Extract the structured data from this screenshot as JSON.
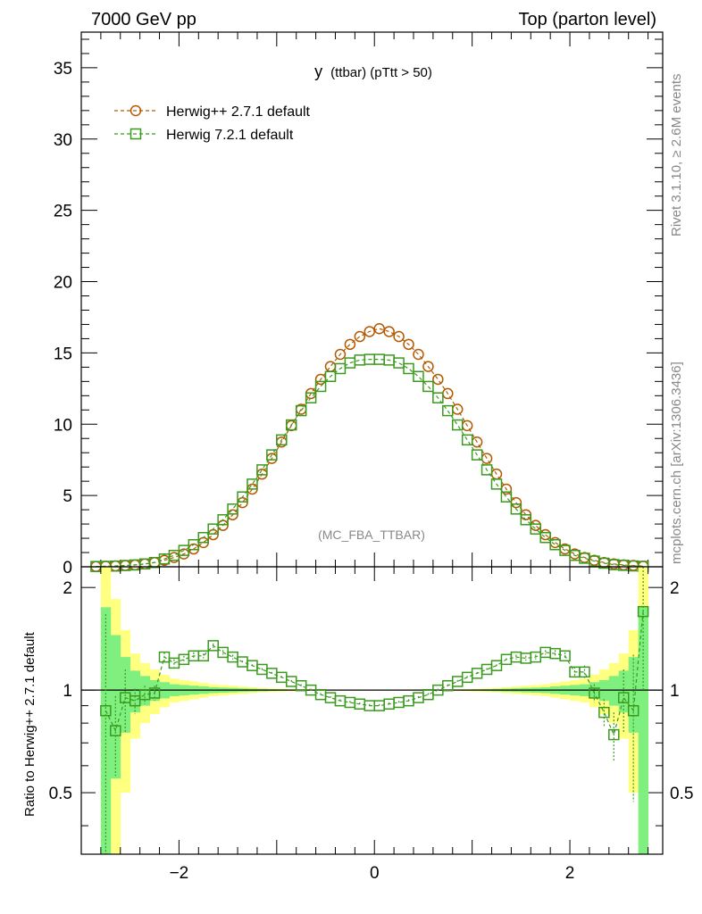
{
  "header": {
    "left": "7000 GeV pp",
    "right": "Top (parton level)"
  },
  "side": {
    "rivet": "Rivet 3.1.10, ≥ 2.6M events",
    "mcplots": "mcplots.cern.ch [arXiv:1306.3436]"
  },
  "plot_title_main": "y",
  "plot_title_sub": "(ttbar)  (pTtt > 50)",
  "analysis_label": "(MC_FBA_TTBAR)",
  "ratio_ylabel": "Ratio to Herwig++ 2.7.1 default",
  "colors": {
    "herwigpp": "#b35a00",
    "herwig7": "#3a9a1e",
    "band_yellow": "#ffff80",
    "band_green": "#7ff07f"
  },
  "chart_data": [
    {
      "type": "scatter",
      "panel": "main",
      "title": "y (ttbar) (pTtt > 50)",
      "xlim": [
        -3,
        2.95
      ],
      "ylim": [
        0,
        37.5
      ],
      "yticks": [
        0,
        5,
        10,
        15,
        20,
        25,
        30,
        35
      ],
      "legend_position": "top-left",
      "x": [
        -2.85,
        -2.75,
        -2.65,
        -2.55,
        -2.45,
        -2.35,
        -2.25,
        -2.15,
        -2.05,
        -1.95,
        -1.85,
        -1.75,
        -1.65,
        -1.55,
        -1.45,
        -1.35,
        -1.25,
        -1.15,
        -1.05,
        -0.95,
        -0.85,
        -0.75,
        -0.65,
        -0.55,
        -0.45,
        -0.35,
        -0.25,
        -0.15,
        -0.05,
        0.05,
        0.15,
        0.25,
        0.35,
        0.45,
        0.55,
        0.65,
        0.75,
        0.85,
        0.95,
        1.05,
        1.15,
        1.25,
        1.35,
        1.45,
        1.55,
        1.65,
        1.75,
        1.85,
        1.95,
        2.05,
        2.15,
        2.25,
        2.35,
        2.45,
        2.55,
        2.65,
        2.75
      ],
      "series": [
        {
          "name": "Herwig++ 2.7.1 default",
          "marker": "circle",
          "values": [
            0.02,
            0.04,
            0.06,
            0.09,
            0.13,
            0.2,
            0.3,
            0.45,
            0.65,
            0.9,
            1.25,
            1.7,
            2.25,
            2.9,
            3.65,
            4.5,
            5.45,
            6.5,
            7.6,
            8.75,
            9.9,
            11.05,
            12.15,
            13.15,
            14.05,
            14.9,
            15.6,
            16.15,
            16.5,
            16.7,
            16.5,
            16.15,
            15.6,
            14.9,
            14.05,
            13.15,
            12.15,
            11.05,
            9.9,
            8.75,
            7.6,
            6.5,
            5.45,
            4.5,
            3.65,
            2.9,
            2.25,
            1.7,
            1.25,
            0.9,
            0.65,
            0.45,
            0.3,
            0.2,
            0.13,
            0.09,
            0.05
          ]
        },
        {
          "name": "Herwig 7.2.1 default",
          "marker": "square",
          "values": [
            0.02,
            0.03,
            0.05,
            0.09,
            0.13,
            0.2,
            0.3,
            0.55,
            0.8,
            1.15,
            1.55,
            2.05,
            2.65,
            3.3,
            4.05,
            4.9,
            5.8,
            6.8,
            7.85,
            8.9,
            9.95,
            10.95,
            11.85,
            12.65,
            13.35,
            13.9,
            14.3,
            14.5,
            14.55,
            14.55,
            14.5,
            14.3,
            13.9,
            13.35,
            12.65,
            11.85,
            10.95,
            9.95,
            8.9,
            7.85,
            6.8,
            5.8,
            4.9,
            4.05,
            3.3,
            2.65,
            2.05,
            1.55,
            1.15,
            0.8,
            0.6,
            0.4,
            0.25,
            0.15,
            0.1,
            0.06,
            0.03
          ]
        }
      ]
    },
    {
      "type": "scatter",
      "panel": "ratio",
      "ylabel": "Ratio to Herwig++ 2.7.1 default",
      "xlim": [
        -3,
        2.95
      ],
      "ylim": [
        0.33,
        2.3
      ],
      "xticks": [
        -2,
        0,
        2
      ],
      "yticks": [
        0.5,
        1,
        2
      ],
      "x": [
        -2.75,
        -2.65,
        -2.55,
        -2.45,
        -2.35,
        -2.25,
        -2.15,
        -2.05,
        -1.95,
        -1.85,
        -1.75,
        -1.65,
        -1.55,
        -1.45,
        -1.35,
        -1.25,
        -1.15,
        -1.05,
        -0.95,
        -0.85,
        -0.75,
        -0.65,
        -0.55,
        -0.45,
        -0.35,
        -0.25,
        -0.15,
        -0.05,
        0.05,
        0.15,
        0.25,
        0.35,
        0.45,
        0.55,
        0.65,
        0.75,
        0.85,
        0.95,
        1.05,
        1.15,
        1.25,
        1.35,
        1.45,
        1.55,
        1.65,
        1.75,
        1.85,
        1.95,
        2.05,
        2.15,
        2.25,
        2.35,
        2.45,
        2.55,
        2.65,
        2.75
      ],
      "series": [
        {
          "name": "Herwig 7.2.1 default",
          "values": [
            0.87,
            0.76,
            0.95,
            0.93,
            0.97,
            0.98,
            1.25,
            1.2,
            1.23,
            1.26,
            1.26,
            1.35,
            1.29,
            1.25,
            1.21,
            1.18,
            1.15,
            1.12,
            1.09,
            1.06,
            1.03,
            1.0,
            0.97,
            0.95,
            0.93,
            0.92,
            0.91,
            0.9,
            0.9,
            0.91,
            0.92,
            0.93,
            0.95,
            0.97,
            1.0,
            1.03,
            1.06,
            1.09,
            1.12,
            1.15,
            1.18,
            1.23,
            1.25,
            1.24,
            1.25,
            1.29,
            1.28,
            1.26,
            1.13,
            1.13,
            0.98,
            0.86,
            0.74,
            0.95,
            0.87,
            1.7
          ],
          "err": [
            0.8,
            0.2,
            0.2,
            0.08,
            0.06,
            0.05,
            0.04,
            0.03,
            0.03,
            0.03,
            0.02,
            0.02,
            0.02,
            0.02,
            0.01,
            0.01,
            0.01,
            0.01,
            0.01,
            0.01,
            0.01,
            0.01,
            0.01,
            0.01,
            0.01,
            0.01,
            0.01,
            0.01,
            0.01,
            0.01,
            0.01,
            0.01,
            0.01,
            0.01,
            0.01,
            0.01,
            0.01,
            0.01,
            0.01,
            0.01,
            0.01,
            0.01,
            0.02,
            0.02,
            0.02,
            0.02,
            0.03,
            0.03,
            0.04,
            0.05,
            0.06,
            0.08,
            0.12,
            0.2,
            0.4,
            0.7
          ]
        }
      ],
      "band_yellow_halfwidth": [
        1.3,
        0.85,
        0.5,
        0.28,
        0.2,
        0.15,
        0.11,
        0.08,
        0.07,
        0.06,
        0.05,
        0.04,
        0.035,
        0.03,
        0.025,
        0.02,
        0.015,
        0.012,
        0.01,
        0.008,
        0.006,
        0.005,
        0.004,
        0.003,
        0.003,
        0.003,
        0.003,
        0.003,
        0.003,
        0.003,
        0.003,
        0.003,
        0.003,
        0.003,
        0.004,
        0.005,
        0.006,
        0.008,
        0.01,
        0.012,
        0.015,
        0.02,
        0.025,
        0.03,
        0.035,
        0.04,
        0.05,
        0.06,
        0.07,
        0.08,
        0.11,
        0.15,
        0.2,
        0.28,
        0.5,
        1.3
      ],
      "band_green_halfwidth": [
        0.75,
        0.45,
        0.25,
        0.14,
        0.1,
        0.07,
        0.055,
        0.04,
        0.035,
        0.03,
        0.025,
        0.02,
        0.017,
        0.015,
        0.012,
        0.01,
        0.008,
        0.006,
        0.005,
        0.004,
        0.003,
        0.003,
        0.002,
        0.002,
        0.002,
        0.002,
        0.002,
        0.002,
        0.002,
        0.002,
        0.002,
        0.002,
        0.002,
        0.002,
        0.002,
        0.003,
        0.003,
        0.004,
        0.005,
        0.006,
        0.008,
        0.01,
        0.012,
        0.015,
        0.017,
        0.02,
        0.025,
        0.03,
        0.035,
        0.04,
        0.055,
        0.07,
        0.1,
        0.14,
        0.25,
        0.75
      ]
    }
  ]
}
